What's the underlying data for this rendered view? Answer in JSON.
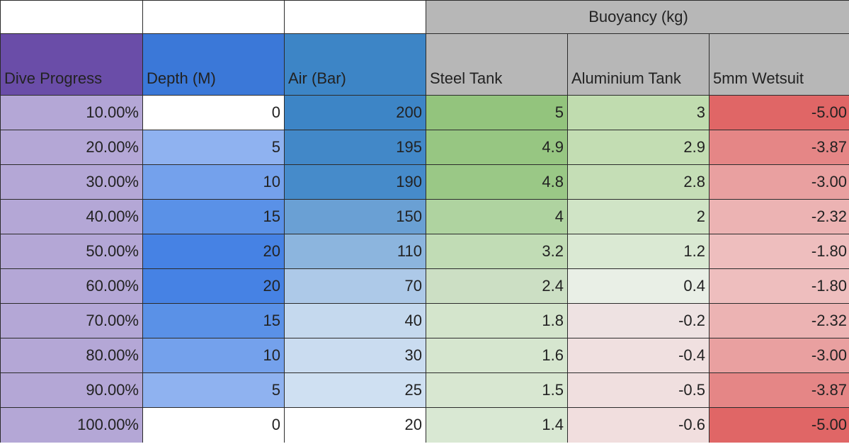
{
  "sheet": {
    "group_header": "Buoyancy (kg)",
    "columns": [
      {
        "label": "Dive Progress",
        "bg": "#6a4da8"
      },
      {
        "label": "Depth (M)",
        "bg": "#3b78d8"
      },
      {
        "label": "Air (Bar)",
        "bg": "#3d85c6"
      },
      {
        "label": "Steel Tank",
        "bg": "#b7b7b7"
      },
      {
        "label": "Aluminium Tank",
        "bg": "#b7b7b7"
      },
      {
        "label": "5mm Wetsuit",
        "bg": "#b7b7b7"
      }
    ],
    "rows": [
      {
        "cells": [
          "10.00%",
          "0",
          "200",
          "5",
          "3",
          "-5.00"
        ],
        "colors": [
          "#b4a7d6",
          "#ffffff",
          "#3d85c6",
          "#93c47d",
          "#c0dcaf",
          "#e06666"
        ]
      },
      {
        "cells": [
          "20.00%",
          "5",
          "195",
          "4.9",
          "2.9",
          "-3.87"
        ],
        "colors": [
          "#b4a7d6",
          "#8fb2f0",
          "#4288c8",
          "#97c682",
          "#c3ddb3",
          "#e58686"
        ]
      },
      {
        "cells": [
          "30.00%",
          "10",
          "190",
          "4.8",
          "2.8",
          "-3.00"
        ],
        "colors": [
          "#b4a7d6",
          "#74a1ec",
          "#468bca",
          "#9ac886",
          "#c5deb6",
          "#e9a0a0"
        ]
      },
      {
        "cells": [
          "40.00%",
          "15",
          "150",
          "4",
          "2",
          "-2.32"
        ],
        "colors": [
          "#b4a7d6",
          "#5a91e7",
          "#6aa0d4",
          "#afd3a0",
          "#d0e4c6",
          "#ecb3b3"
        ]
      },
      {
        "cells": [
          "50.00%",
          "20",
          "110",
          "3.2",
          "1.2",
          "-1.80"
        ],
        "colors": [
          "#b4a7d6",
          "#4682e4",
          "#8cb5de",
          "#c1dcb5",
          "#dae9d3",
          "#eebebe"
        ]
      },
      {
        "cells": [
          "60.00%",
          "20",
          "70",
          "2.4",
          "0.4",
          "-1.80"
        ],
        "colors": [
          "#b4a7d6",
          "#4682e4",
          "#adc9e8",
          "#ccdfc4",
          "#e9efe6",
          "#eebebe"
        ]
      },
      {
        "cells": [
          "70.00%",
          "15",
          "40",
          "1.8",
          "-0.2",
          "-2.32"
        ],
        "colors": [
          "#b4a7d6",
          "#5a91e7",
          "#c5d9ee",
          "#d4e5cc",
          "#eee2e2",
          "#ecb3b3"
        ]
      },
      {
        "cells": [
          "80.00%",
          "10",
          "30",
          "1.6",
          "-0.4",
          "-3.00"
        ],
        "colors": [
          "#b4a7d6",
          "#74a1ec",
          "#cadcf0",
          "#d6e6cf",
          "#f0e0e0",
          "#e9a0a0"
        ]
      },
      {
        "cells": [
          "90.00%",
          "5",
          "25",
          "1.5",
          "-0.5",
          "-3.87"
        ],
        "colors": [
          "#b4a7d6",
          "#8fb2f0",
          "#cfe0f2",
          "#d8e7d1",
          "#f0dfdf",
          "#e58686"
        ]
      },
      {
        "cells": [
          "100.00%",
          "0",
          "20",
          "1.4",
          "-0.6",
          "-5.00"
        ],
        "colors": [
          "#b4a7d6",
          "#ffffff",
          "#ffffff",
          "#d9e8d3",
          "#f1dede",
          "#e06666"
        ]
      }
    ]
  }
}
